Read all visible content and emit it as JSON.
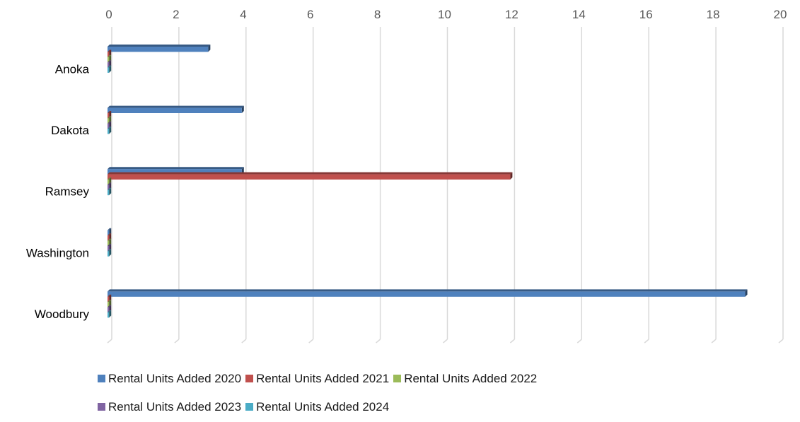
{
  "chart_data": {
    "type": "bar",
    "orientation": "horizontal",
    "style": "3d",
    "categories": [
      "Anoka",
      "Dakota",
      "Ramsey",
      "Washington",
      "Woodbury"
    ],
    "series": [
      {
        "name": "Rental Units Added 2020",
        "color": "#4F81BD",
        "values": [
          3,
          4,
          4,
          0,
          19
        ]
      },
      {
        "name": "Rental Units Added 2021",
        "color": "#C0504D",
        "values": [
          0,
          0,
          12,
          0,
          0
        ]
      },
      {
        "name": "Rental Units Added 2022",
        "color": "#9BBB59",
        "values": [
          0,
          0,
          0,
          0,
          0
        ]
      },
      {
        "name": "Rental Units Added 2023",
        "color": "#8064A2",
        "values": [
          0,
          0,
          0,
          0,
          0
        ]
      },
      {
        "name": "Rental Units Added 2024",
        "color": "#4BACC6",
        "values": [
          0,
          0,
          0,
          0,
          0
        ]
      }
    ],
    "xlim": [
      0,
      20
    ],
    "xticks": [
      0,
      2,
      4,
      6,
      8,
      10,
      12,
      14,
      16,
      18,
      20
    ],
    "grid": true,
    "legend_position": "bottom",
    "title": "",
    "xlabel": "",
    "ylabel": ""
  }
}
